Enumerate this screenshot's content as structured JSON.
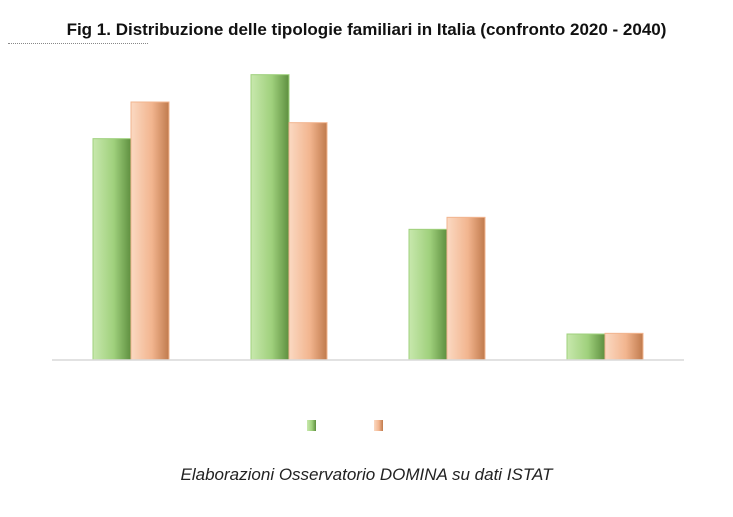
{
  "title": "Fig 1. Distribuzione delle tipologie familiari in Italia (confronto 2020 - 2040)",
  "caption": "Elaborazioni Osservatorio DOMINA su dati ISTAT",
  "colors": {
    "series1": "#9fd07c",
    "series1_dark": "#6fa34d",
    "series2": "#f2b58f",
    "series2_dark": "#cf8a5c",
    "axis": "#d9d9d9"
  },
  "chart_data": {
    "type": "bar",
    "categories": [
      "",
      "",
      "",
      ""
    ],
    "series": [
      {
        "values": [
          33.2,
          42.8,
          19.6,
          3.9
        ]
      },
      {
        "values": [
          38.7,
          35.6,
          21.4,
          4.0
        ]
      }
    ],
    "ylim": [
      0,
      45
    ],
    "grid": false,
    "legend": "bottom"
  }
}
